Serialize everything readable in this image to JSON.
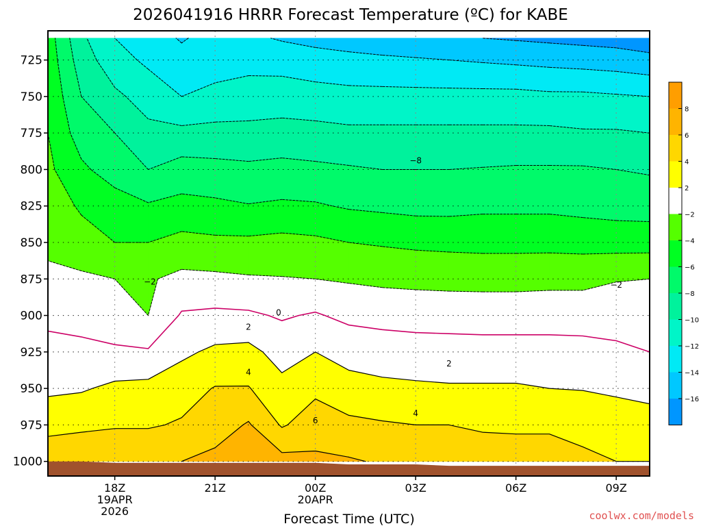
{
  "title": "2026041916 HRRR Forecast Temperature (ºC) for KABE",
  "credit": "coolwx.com/models",
  "chart_data": {
    "type": "contour",
    "title": "2026041916 HRRR Forecast Temperature (ºC) for KABE",
    "xlabel": "Forecast Time (UTC)",
    "ylabel": "",
    "x_unit": "forecast hour from 2026041916",
    "xlim": [
      16,
      34
    ],
    "ylim": [
      1010,
      705
    ],
    "y_ticks": [
      725,
      750,
      775,
      800,
      825,
      850,
      875,
      900,
      925,
      950,
      975,
      1000
    ],
    "x_ticks": [
      {
        "hour": 18,
        "lines": [
          "18Z",
          "19APR",
          "2026"
        ]
      },
      {
        "hour": 21,
        "lines": [
          "21Z"
        ]
      },
      {
        "hour": 24,
        "lines": [
          "00Z",
          "20APR"
        ]
      },
      {
        "hour": 27,
        "lines": [
          "03Z"
        ]
      },
      {
        "hour": 30,
        "lines": [
          "06Z"
        ]
      },
      {
        "hour": 33,
        "lines": [
          "09Z"
        ]
      }
    ],
    "hours": [
      16,
      17,
      18,
      19,
      20,
      21,
      22,
      23,
      24,
      25,
      26,
      27,
      28,
      29,
      30,
      31,
      32,
      33,
      34
    ],
    "levels_hpa": [
      1000,
      975,
      950,
      925,
      900,
      875,
      850,
      825,
      800,
      775,
      750,
      725,
      710
    ],
    "surface_pressure": [
      1000,
      1000,
      1001,
      1001,
      1001,
      1001,
      1001,
      1001,
      1001,
      1002,
      1002,
      1002,
      1003,
      1003,
      1003,
      1003,
      1003,
      1003,
      1003
    ],
    "temperature": [
      [
        5.3,
        5.6,
        5.8,
        5.8,
        6.0,
        6.6,
        7.6,
        6.7,
        6.4,
        6.2,
        5.8,
        5.0,
        4.5,
        4.4,
        4.3,
        4.3,
        4.2,
        4.0,
        4.0
      ],
      [
        3.4,
        3.6,
        3.8,
        3.8,
        4.2,
        5.0,
        6.2,
        3.8,
        5.0,
        4.5,
        4.2,
        4.0,
        4.0,
        3.9,
        3.9,
        3.9,
        3.7,
        3.3,
        3.1
      ],
      [
        1.6,
        1.8,
        2.4,
        2.6,
        3.2,
        4.1,
        4.1,
        2.6,
        3.6,
        2.6,
        2.4,
        2.3,
        2.2,
        2.2,
        2.2,
        2.0,
        1.9,
        1.6,
        1.2
      ],
      [
        0.8,
        0.7,
        0.4,
        0.2,
        1.6,
        2.4,
        2.6,
        1.2,
        2.0,
        1.4,
        1.1,
        0.9,
        0.8,
        0.8,
        0.8,
        0.8,
        0.7,
        0.4,
        0.0
      ],
      [
        -0.6,
        -1.0,
        -1.6,
        -2.0,
        0.2,
        0.4,
        0.3,
        -0.2,
        0.2,
        -0.5,
        -0.7,
        -0.8,
        -0.8,
        -0.9,
        -0.9,
        -0.9,
        -0.9,
        -0.9,
        -1.3
      ],
      [
        -1.2,
        -1.6,
        -2.0,
        -2.2,
        -1.5,
        -1.6,
        -1.8,
        -1.9,
        -2.0,
        -2.2,
        -2.4,
        -2.5,
        -2.6,
        -2.6,
        -2.6,
        -2.5,
        -2.5,
        -2.1,
        -2.0
      ],
      [
        -2.8,
        -3.4,
        -4.0,
        -4.0,
        -3.4,
        -3.6,
        -3.6,
        -3.4,
        -3.6,
        -4.0,
        -4.2,
        -4.4,
        -4.5,
        -4.6,
        -4.6,
        -4.6,
        -4.7,
        -4.8,
        -4.8
      ],
      [
        -3.2,
        -4.2,
        -5.0,
        -5.8,
        -5.4,
        -5.6,
        -5.9,
        -5.7,
        -5.8,
        -6.2,
        -6.4,
        -6.6,
        -6.6,
        -6.4,
        -6.4,
        -6.4,
        -6.6,
        -6.8,
        -6.9
      ],
      [
        -3.6,
        -5.6,
        -7.0,
        -8.0,
        -7.2,
        -7.4,
        -7.6,
        -7.4,
        -7.6,
        -7.8,
        -8.0,
        -8.0,
        -8.0,
        -7.9,
        -7.8,
        -7.8,
        -7.8,
        -8.0,
        -8.2
      ],
      [
        -4.0,
        -7.0,
        -8.0,
        -9.5,
        -9.5,
        -9.4,
        -9.4,
        -9.3,
        -9.4,
        -9.6,
        -9.6,
        -9.6,
        -9.6,
        -9.6,
        -9.6,
        -9.6,
        -9.8,
        -9.8,
        -10.0
      ],
      [
        -4.4,
        -8.0,
        -9.6,
        -10.8,
        -12.0,
        -11.4,
        -11.2,
        -11.0,
        -11.2,
        -11.4,
        -11.4,
        -11.4,
        -11.4,
        -11.4,
        -11.4,
        -11.6,
        -11.6,
        -11.8,
        -12.0
      ],
      [
        -4.8,
        -9.0,
        -11.2,
        -12.4,
        -13.3,
        -13.0,
        -12.6,
        -12.8,
        -13.2,
        -13.4,
        -13.6,
        -13.8,
        -14.0,
        -14.2,
        -14.4,
        -14.6,
        -14.8,
        -15.0,
        -15.4
      ],
      [
        -5.0,
        -9.6,
        -12.0,
        -13.0,
        -14.2,
        -13.2,
        -13.6,
        -14.2,
        -14.6,
        -15.0,
        -15.4,
        -15.6,
        -15.8,
        -16.0,
        -16.2,
        -16.4,
        -16.6,
        -16.8,
        -17.2
      ]
    ],
    "contour_labels": [
      {
        "text": "−2",
        "hour": 19.05,
        "p": 877
      },
      {
        "text": "0",
        "hour": 22.9,
        "p": 898
      },
      {
        "text": "2",
        "hour": 22.0,
        "p": 908
      },
      {
        "text": "4",
        "hour": 22.0,
        "p": 939
      },
      {
        "text": "2",
        "hour": 28.0,
        "p": 933
      },
      {
        "text": "4",
        "hour": 27.0,
        "p": 967
      },
      {
        "text": "6",
        "hour": 24.0,
        "p": 972
      },
      {
        "text": "−8",
        "hour": 27.0,
        "p": 794
      },
      {
        "text": "−2",
        "hour": 33.0,
        "p": 879
      }
    ],
    "colorbar": {
      "labels": [
        "8",
        "6",
        "4",
        "2",
        "−2",
        "−4",
        "−6",
        "−8",
        "−10",
        "−12",
        "−14",
        "−16"
      ],
      "bins": [
        {
          "lo": 8,
          "hi": 10,
          "color": "#ff9e00"
        },
        {
          "lo": 6,
          "hi": 8,
          "color": "#ffb400"
        },
        {
          "lo": 4,
          "hi": 6,
          "color": "#ffd700"
        },
        {
          "lo": 2,
          "hi": 4,
          "color": "#ffff00"
        },
        {
          "lo": -2,
          "hi": 2,
          "color": "#ffffff"
        },
        {
          "lo": -4,
          "hi": -2,
          "color": "#55ff00"
        },
        {
          "lo": -6,
          "hi": -4,
          "color": "#00ff22"
        },
        {
          "lo": -8,
          "hi": -6,
          "color": "#00fa6a"
        },
        {
          "lo": -10,
          "hi": -8,
          "color": "#00f29c"
        },
        {
          "lo": -12,
          "hi": -10,
          "color": "#00f5c8"
        },
        {
          "lo": -14,
          "hi": -12,
          "color": "#00eaf5"
        },
        {
          "lo": -16,
          "hi": -14,
          "color": "#00c8ff"
        },
        {
          "lo": -18,
          "hi": -16,
          "color": "#0096ff"
        }
      ]
    },
    "colors": {
      "ground": "#a0522d",
      "zero_contour": "#cc0066",
      "contour": "#000000",
      "grid": "#888888"
    },
    "grid": true
  }
}
